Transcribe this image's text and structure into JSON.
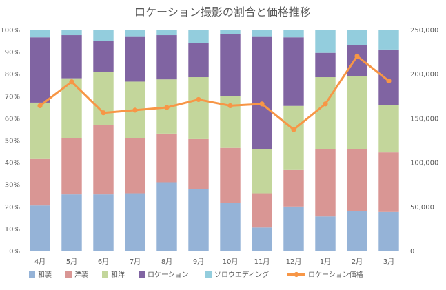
{
  "chart_data": {
    "type": "bar",
    "stacked": true,
    "percent_stacked": true,
    "title": "ロケーション撮影の割合と価格推移",
    "xlabel": "",
    "ylabel": "",
    "categories": [
      "4月",
      "5月",
      "6月",
      "7月",
      "8月",
      "9月",
      "10月",
      "11月",
      "12月",
      "1月",
      "2月",
      "3月"
    ],
    "ylim": [
      0,
      100
    ],
    "yticks": [
      "0%",
      "10%",
      "20%",
      "30%",
      "40%",
      "50%",
      "60%",
      "70%",
      "80%",
      "90%",
      "100%"
    ],
    "series": [
      {
        "name": "和装",
        "color": "#95b3d7",
        "values": [
          20.5,
          25.5,
          25.5,
          26.0,
          31.0,
          28.0,
          21.5,
          10.5,
          20.0,
          15.5,
          18.0,
          17.5
        ]
      },
      {
        "name": "洋装",
        "color": "#d99694",
        "values": [
          21.0,
          25.5,
          31.5,
          25.0,
          22.0,
          22.5,
          25.0,
          15.5,
          16.5,
          30.5,
          28.0,
          27.0
        ]
      },
      {
        "name": "和洋",
        "color": "#c3d69b",
        "values": [
          25.5,
          27.0,
          24.0,
          25.5,
          24.5,
          28.0,
          23.5,
          20.0,
          29.0,
          32.5,
          33.0,
          21.5
        ]
      },
      {
        "name": "ロケーション",
        "color": "#8064a2",
        "values": [
          29.5,
          19.5,
          14.0,
          20.5,
          20.0,
          15.5,
          28.0,
          51.0,
          31.0,
          11.0,
          14.0,
          25.0
        ]
      },
      {
        "name": "ソロウエディング",
        "color": "#93cddd",
        "values": [
          3.5,
          2.5,
          5.0,
          3.0,
          2.5,
          6.0,
          2.0,
          3.0,
          3.5,
          10.5,
          7.0,
          9.0
        ]
      }
    ],
    "line_series": {
      "name": "ロケーション価格",
      "color": "#f79646",
      "axis": "secondary",
      "ylim": [
        0,
        250000
      ],
      "yticks": [
        "0",
        "50,000",
        "100,000",
        "150,000",
        "200,000",
        "250,000"
      ],
      "values": [
        164000,
        191000,
        156000,
        159000,
        162000,
        171000,
        164000,
        166000,
        137000,
        166000,
        220000,
        192000
      ]
    },
    "legend": "bottom",
    "grid": false
  }
}
